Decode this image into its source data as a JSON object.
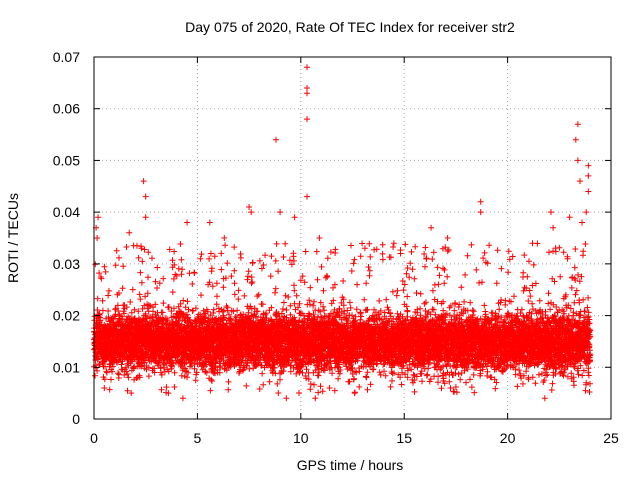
{
  "chart_data": {
    "type": "scatter",
    "title": "Day 075 of 2020, Rate Of TEC Index for receiver str2",
    "xlabel": "GPS time / hours",
    "ylabel": "ROTI / TECUs",
    "xlim": [
      0,
      25
    ],
    "ylim": [
      0,
      0.07
    ],
    "xticks": [
      "0",
      "5",
      "10",
      "15",
      "20",
      "25"
    ],
    "yticks": [
      "0",
      "0.01",
      "0.02",
      "0.03",
      "0.04",
      "0.05",
      "0.06",
      "0.07"
    ],
    "grid": true,
    "marker": "+",
    "color": "#ff0000",
    "series": [
      {
        "name": "ROTI",
        "baseline_band": [
          0.008,
          0.022
        ],
        "notable_points": [
          {
            "x": 0.1,
            "y": 0.037
          },
          {
            "x": 0.2,
            "y": 0.039
          },
          {
            "x": 0.15,
            "y": 0.035
          },
          {
            "x": 1.7,
            "y": 0.036
          },
          {
            "x": 2.4,
            "y": 0.046
          },
          {
            "x": 2.5,
            "y": 0.043
          },
          {
            "x": 2.5,
            "y": 0.039
          },
          {
            "x": 2.3,
            "y": 0.033
          },
          {
            "x": 4.5,
            "y": 0.038
          },
          {
            "x": 5.6,
            "y": 0.038
          },
          {
            "x": 6.3,
            "y": 0.035
          },
          {
            "x": 7.5,
            "y": 0.041
          },
          {
            "x": 7.6,
            "y": 0.04
          },
          {
            "x": 8.8,
            "y": 0.054
          },
          {
            "x": 9.0,
            "y": 0.04
          },
          {
            "x": 9.7,
            "y": 0.039
          },
          {
            "x": 10.3,
            "y": 0.068
          },
          {
            "x": 10.3,
            "y": 0.064
          },
          {
            "x": 10.3,
            "y": 0.063
          },
          {
            "x": 10.3,
            "y": 0.058
          },
          {
            "x": 10.3,
            "y": 0.043
          },
          {
            "x": 10.9,
            "y": 0.035
          },
          {
            "x": 13.1,
            "y": 0.033
          },
          {
            "x": 14.5,
            "y": 0.034
          },
          {
            "x": 16.3,
            "y": 0.037
          },
          {
            "x": 17.1,
            "y": 0.035
          },
          {
            "x": 18.7,
            "y": 0.042
          },
          {
            "x": 18.7,
            "y": 0.04
          },
          {
            "x": 22.1,
            "y": 0.04
          },
          {
            "x": 22.2,
            "y": 0.037
          },
          {
            "x": 23.0,
            "y": 0.039
          },
          {
            "x": 23.3,
            "y": 0.054
          },
          {
            "x": 23.4,
            "y": 0.057
          },
          {
            "x": 23.4,
            "y": 0.05
          },
          {
            "x": 23.5,
            "y": 0.046
          },
          {
            "x": 23.6,
            "y": 0.038
          },
          {
            "x": 23.9,
            "y": 0.049
          },
          {
            "x": 23.9,
            "y": 0.047
          },
          {
            "x": 23.9,
            "y": 0.044
          },
          {
            "x": 23.8,
            "y": 0.04
          },
          {
            "x": 22.9,
            "y": 0.031
          }
        ],
        "low_points": [
          {
            "x": 0.5,
            "y": 0.006
          },
          {
            "x": 1.8,
            "y": 0.005
          },
          {
            "x": 3.6,
            "y": 0.005
          },
          {
            "x": 4.3,
            "y": 0.004
          },
          {
            "x": 9.3,
            "y": 0.004
          },
          {
            "x": 10.7,
            "y": 0.004
          },
          {
            "x": 12.6,
            "y": 0.005
          },
          {
            "x": 21.8,
            "y": 0.004
          },
          {
            "x": 23.8,
            "y": 0.007
          }
        ]
      }
    ]
  }
}
